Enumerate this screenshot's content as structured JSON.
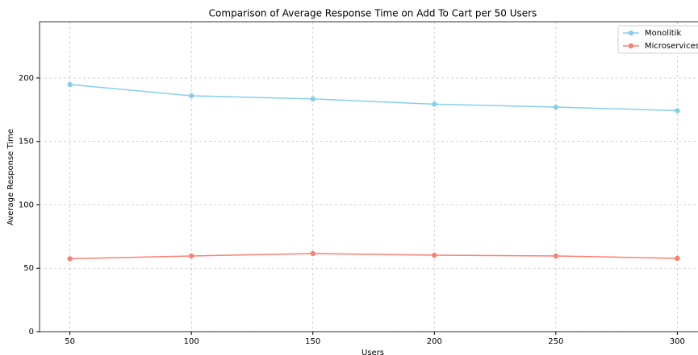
{
  "chart_data": {
    "type": "line",
    "title": "Comparison of Average Response Time on Add To Cart per 50 Users",
    "x_label": "Users",
    "y_label": "Average Response Time",
    "x": [
      50,
      100,
      150,
      200,
      250,
      300
    ],
    "series": [
      {
        "name": "Monolitik",
        "color": "#87ceeb",
        "values": [
          194.9,
          186.0,
          183.5,
          179.4,
          177.1,
          174.3
        ]
      },
      {
        "name": "Microservices",
        "color": "#fa8072",
        "values": [
          57.5,
          59.7,
          61.6,
          60.3,
          59.7,
          57.8
        ]
      }
    ],
    "xlim": [
      37.5,
      312.5
    ],
    "ylim": [
      0,
      244.4
    ],
    "xticks": [
      50,
      100,
      150,
      200,
      250,
      300
    ],
    "yticks": [
      0,
      50,
      100,
      150,
      200
    ],
    "grid": true,
    "legend": "upper right"
  }
}
